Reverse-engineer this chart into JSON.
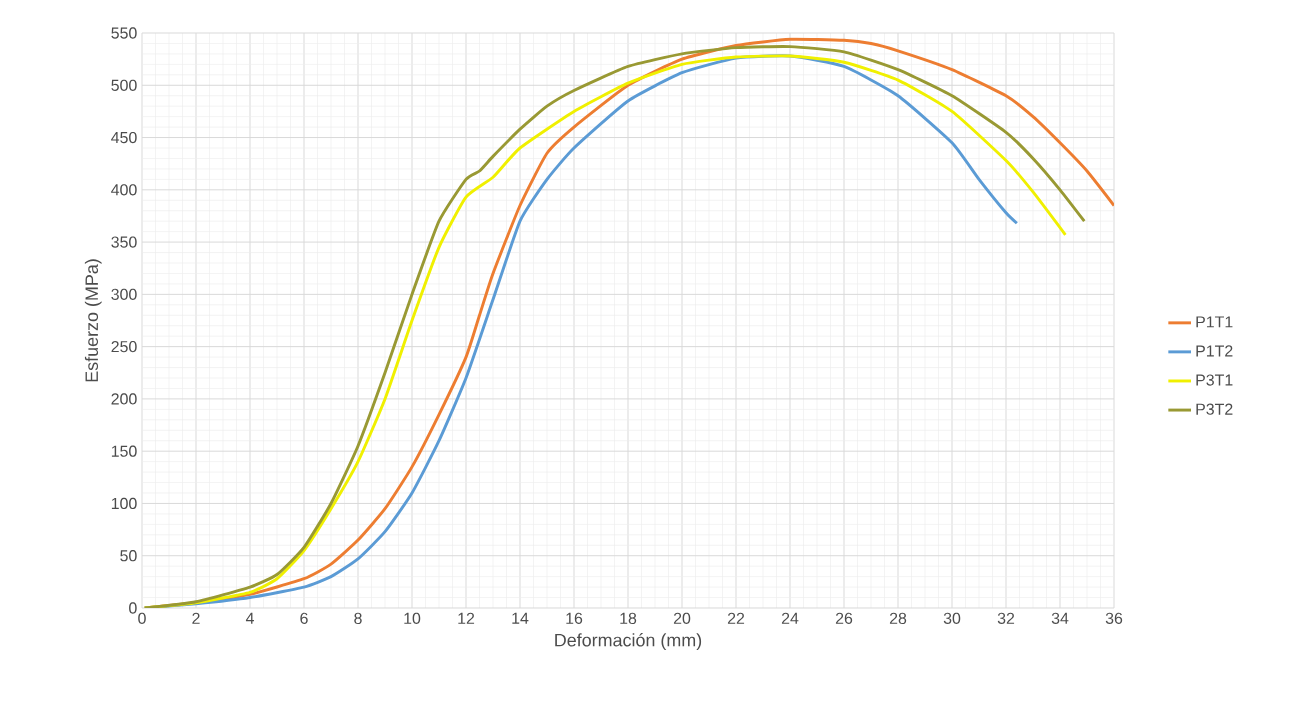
{
  "chart_data": {
    "type": "line",
    "xlabel": "Deformación (mm)",
    "ylabel": "Esfuerzo (MPa)",
    "xlim": [
      0,
      36
    ],
    "ylim": [
      0,
      550
    ],
    "xticks": [
      0,
      2,
      4,
      6,
      8,
      10,
      12,
      14,
      16,
      18,
      20,
      22,
      24,
      26,
      28,
      30,
      32,
      34,
      36
    ],
    "yticks": [
      0,
      50,
      100,
      150,
      200,
      250,
      300,
      350,
      400,
      450,
      500,
      550
    ],
    "grid": true,
    "legend": "right",
    "marker": "none",
    "line_style": "solid",
    "series": [
      {
        "name": "P1T1",
        "color": "#ed7d31",
        "x": [
          0.1,
          2,
          4,
          6,
          7,
          8,
          9,
          10,
          11,
          12,
          12.5,
          13,
          14,
          15,
          16,
          18,
          20,
          22,
          24,
          26,
          27,
          28,
          30,
          32,
          33,
          34,
          35,
          36
        ],
        "values": [
          0,
          5,
          13,
          28,
          42,
          65,
          95,
          135,
          185,
          240,
          280,
          320,
          385,
          435,
          460,
          500,
          525,
          538,
          544,
          543,
          540,
          533,
          515,
          490,
          470,
          445,
          418,
          385
        ]
      },
      {
        "name": "P1T2",
        "color": "#5b9bd5",
        "x": [
          0.1,
          2,
          4,
          6,
          7,
          8,
          9,
          10,
          11,
          12,
          13,
          14,
          15,
          16,
          18,
          20,
          22,
          24,
          26,
          28,
          30,
          31,
          32,
          32.4
        ],
        "values": [
          0,
          4,
          10,
          20,
          30,
          47,
          73,
          110,
          160,
          220,
          295,
          370,
          410,
          440,
          485,
          512,
          526,
          528,
          518,
          490,
          445,
          410,
          378,
          368
        ]
      },
      {
        "name": "P3T1",
        "color": "#f0f000",
        "x": [
          0.1,
          2,
          4,
          5,
          6,
          7,
          8,
          9,
          10,
          11,
          12,
          13,
          14,
          16,
          18,
          20,
          22,
          24,
          26,
          28,
          30,
          32,
          33,
          34.2
        ],
        "values": [
          0,
          5,
          15,
          28,
          55,
          95,
          140,
          200,
          275,
          345,
          393,
          412,
          440,
          475,
          502,
          520,
          527,
          528,
          522,
          505,
          475,
          428,
          398,
          357
        ]
      },
      {
        "name": "P3T2",
        "color": "#999933",
        "x": [
          0.1,
          2,
          4,
          5,
          6,
          7,
          8,
          9,
          10,
          11,
          12,
          12.5,
          13,
          14,
          15,
          16,
          18,
          20,
          22,
          24,
          26,
          28,
          30,
          32,
          33,
          34,
          34.9
        ],
        "values": [
          0,
          6,
          20,
          32,
          58,
          100,
          155,
          225,
          300,
          370,
          410,
          418,
          432,
          458,
          480,
          495,
          518,
          530,
          536,
          537,
          532,
          515,
          490,
          455,
          430,
          400,
          370
        ]
      }
    ]
  }
}
